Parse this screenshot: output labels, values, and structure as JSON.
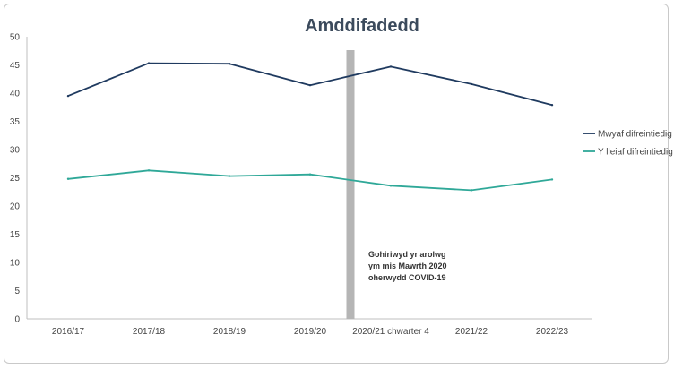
{
  "chart_data": {
    "type": "line",
    "title": "Amddifadedd",
    "xlabel": "",
    "ylabel": "",
    "categories": [
      "2016/17",
      "2017/18",
      "2018/19",
      "2019/20",
      "2020/21 chwarter 4",
      "2021/22",
      "2022/23"
    ],
    "ylim": [
      0,
      50
    ],
    "yticks": [
      0,
      5,
      10,
      15,
      20,
      25,
      30,
      35,
      40,
      45,
      50
    ],
    "grid": false,
    "legend_position": "right",
    "series": [
      {
        "name": "Mwyaf difreintiedig",
        "color": "#1f3a5f",
        "values": [
          39.5,
          45.3,
          45.2,
          41.4,
          44.7,
          41.6,
          37.9
        ]
      },
      {
        "name": "Y lleiaf difreintiedig",
        "color": "#2fa898",
        "values": [
          24.8,
          26.3,
          25.3,
          25.6,
          23.6,
          22.8,
          24.7
        ]
      }
    ],
    "covid_gap": {
      "between": [
        "2019/20",
        "2020/21 chwarter 4"
      ],
      "color": "#b5b5b5",
      "note_lines": [
        "Gohiriwyd yr arolwg",
        "ym mis Mawrth 2020",
        "oherwydd COVID-19"
      ]
    }
  }
}
